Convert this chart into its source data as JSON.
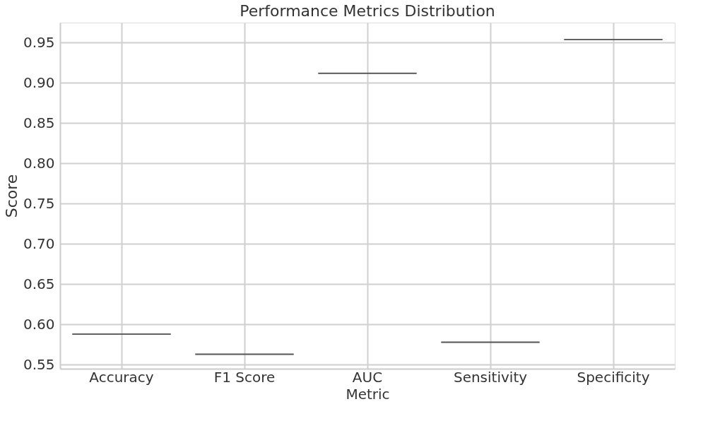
{
  "chart_data": {
    "type": "box",
    "title": "Performance Metrics Distribution",
    "xlabel": "Metric",
    "ylabel": "Score",
    "categories": [
      "Accuracy",
      "F1 Score",
      "AUC",
      "Sensitivity",
      "Specificity"
    ],
    "series": [
      {
        "color": "#555555",
        "boxes": [
          {
            "low": 0.588,
            "q1": 0.588,
            "median": 0.588,
            "q3": 0.588,
            "high": 0.588
          },
          {
            "low": 0.563,
            "q1": 0.563,
            "median": 0.563,
            "q3": 0.563,
            "high": 0.563
          },
          {
            "low": 0.912,
            "q1": 0.912,
            "median": 0.912,
            "q3": 0.912,
            "high": 0.912
          },
          {
            "low": 0.578,
            "q1": 0.578,
            "median": 0.578,
            "q3": 0.578,
            "high": 0.578
          },
          {
            "low": 0.954,
            "q1": 0.954,
            "median": 0.954,
            "q3": 0.954,
            "high": 0.954
          }
        ]
      }
    ],
    "ylim": [
      0.545,
      0.975
    ],
    "yticks": [
      0.55,
      {
        "value": 0.6,
        "label": "0.60"
      },
      0.65,
      {
        "value": 0.7,
        "label": "0.70"
      },
      0.75,
      {
        "value": 0.8,
        "label": "0.80"
      },
      0.85,
      {
        "value": 0.9,
        "label": "0.90"
      },
      0.95
    ],
    "grid": true
  }
}
